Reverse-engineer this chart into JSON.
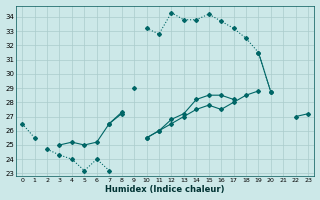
{
  "bg_color": "#cce8e8",
  "grid_color": "#aacccc",
  "line_color": "#006666",
  "xlabel": "Humidex (Indice chaleur)",
  "xlim": [
    -0.5,
    23.5
  ],
  "ylim": [
    22.8,
    34.8
  ],
  "yticks": [
    23,
    24,
    25,
    26,
    27,
    28,
    29,
    30,
    31,
    32,
    33,
    34
  ],
  "xticks": [
    0,
    1,
    2,
    3,
    4,
    5,
    6,
    7,
    8,
    9,
    10,
    11,
    12,
    13,
    14,
    15,
    16,
    17,
    18,
    19,
    20,
    21,
    22,
    23
  ],
  "line1_y": [
    26.5,
    25.5,
    null,
    null,
    null,
    null,
    null,
    null,
    null,
    null,
    33.2,
    32.8,
    34.3,
    33.8,
    33.8,
    34.2,
    33.7,
    33.2,
    32.5,
    31.5,
    28.7,
    null,
    null,
    null
  ],
  "line2_y": [
    null,
    null,
    24.7,
    24.3,
    24.0,
    23.2,
    24.0,
    23.2,
    null,
    null,
    null,
    null,
    null,
    null,
    null,
    null,
    null,
    null,
    null,
    null,
    null,
    null,
    null,
    null
  ],
  "line3_y": [
    null,
    null,
    null,
    null,
    null,
    null,
    null,
    null,
    null,
    29.0,
    null,
    null,
    null,
    null,
    null,
    null,
    null,
    null,
    null,
    null,
    null,
    null,
    null,
    null
  ],
  "line4_y": [
    null,
    null,
    null,
    25.0,
    25.2,
    25.0,
    25.2,
    26.5,
    27.2,
    null,
    25.5,
    26.0,
    26.5,
    27.0,
    27.5,
    27.8,
    27.5,
    28.0,
    28.5,
    28.8,
    null,
    null,
    27.0,
    27.2
  ],
  "line5_y": [
    null,
    null,
    null,
    null,
    null,
    null,
    null,
    26.5,
    27.3,
    null,
    25.5,
    26.0,
    26.8,
    27.2,
    28.2,
    28.5,
    28.5,
    28.2,
    null,
    31.5,
    28.7,
    null,
    null,
    null
  ]
}
